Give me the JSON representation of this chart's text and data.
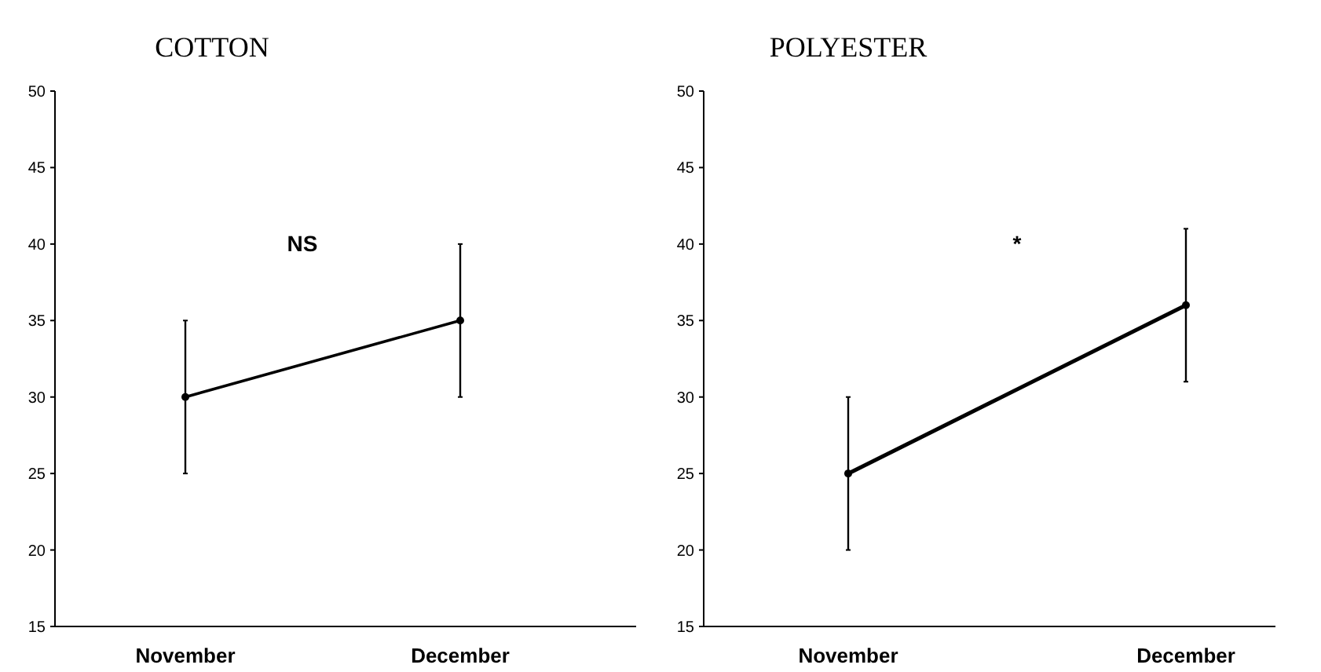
{
  "chart_data": [
    {
      "type": "line",
      "title": "COTTON",
      "categories": [
        "November",
        "December"
      ],
      "series": [
        {
          "color": "#000000",
          "values": [
            30,
            35
          ],
          "errors": [
            5,
            5
          ]
        }
      ],
      "ylim": [
        15,
        50
      ],
      "yticks": [
        15,
        20,
        25,
        30,
        35,
        40,
        45,
        50
      ],
      "annotations": [
        "NS"
      ],
      "marker": "circle"
    },
    {
      "type": "line",
      "title": "POLYESTER",
      "categories": [
        "November",
        "December"
      ],
      "series": [
        {
          "color": "#000000",
          "values": [
            25,
            36
          ],
          "errors": [
            5,
            5
          ]
        }
      ],
      "ylim": [
        15,
        50
      ],
      "yticks": [
        15,
        20,
        25,
        30,
        35,
        40,
        45,
        50
      ],
      "annotations": [
        "*"
      ],
      "marker": "circle"
    }
  ]
}
